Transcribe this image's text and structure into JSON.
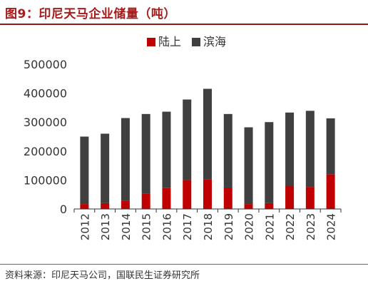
{
  "title": "图9：印尼天马企业储量（吨）",
  "source": "资料来源：印尼天马公司，国联民生证券研究所",
  "colors": {
    "title": "#a61b1b",
    "onshore": "#c00000",
    "offshore": "#404040",
    "axis": "#333333"
  },
  "chart_data": {
    "type": "bar",
    "stacked": true,
    "categories": [
      "2012",
      "2013",
      "2014",
      "2015",
      "2016",
      "2017",
      "2018",
      "2019",
      "2020",
      "2021",
      "2022",
      "2023",
      "2024"
    ],
    "series": [
      {
        "name": "陆上",
        "color": "#c00000",
        "values": [
          17000,
          20000,
          28000,
          52000,
          72000,
          100000,
          103000,
          74000,
          17000,
          20000,
          80000,
          76000,
          120000
        ]
      },
      {
        "name": "滨海",
        "color": "#404040",
        "values": [
          233000,
          240000,
          286000,
          276000,
          264000,
          278000,
          312000,
          254000,
          265000,
          280000,
          253000,
          263000,
          193000
        ]
      }
    ],
    "ylim": [
      0,
      500000
    ],
    "yticks": [
      "0",
      "100000",
      "200000",
      "300000",
      "400000",
      "500000"
    ],
    "grid": false,
    "legend": "top-center"
  }
}
